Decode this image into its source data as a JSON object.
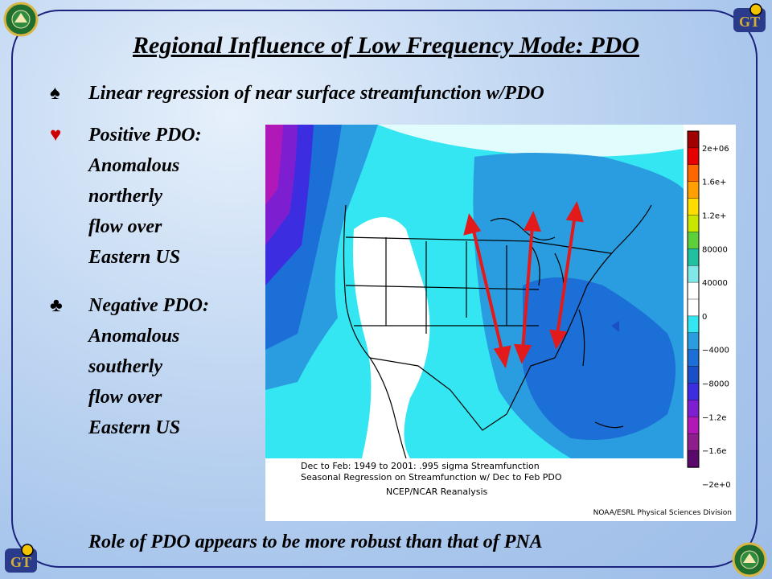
{
  "slide": {
    "title": "Regional Influence of Low Frequency Mode:  PDO",
    "bullets": [
      {
        "symbol": "♠",
        "symbol_color": "#000000",
        "lines": [
          "Linear regression of near surface streamfunction w/PDO"
        ]
      },
      {
        "symbol": "♥",
        "symbol_color": "#cc0000",
        "lines": [
          "Positive PDO:",
          "Anomalous",
          "northerly",
          "flow over",
          "Eastern US"
        ]
      },
      {
        "symbol": "♣",
        "symbol_color": "#000000",
        "lines": [
          "Negative PDO:",
          "Anomalous",
          "southerly",
          "flow over",
          "Eastern US"
        ]
      }
    ],
    "footer": "Role of PDO appears to be more robust than that of PNA",
    "logos": [
      "doe-seal-icon",
      "georgia-tech-logo-icon"
    ]
  },
  "figure": {
    "caption_lines": [
      "Dec to Feb: 1949 to 2001: .995 sigma Streamfunction",
      "Seasonal Regression on Streamfunction  w/ Dec to Feb PDO",
      "NCEP/NCAR Reanalysis"
    ],
    "credit": "NOAA/ESRL Physical Sciences Division",
    "colorbar_labels": [
      "2e+06",
      "1.6e+",
      "1.2e+",
      "80000",
      "40000",
      "0",
      "−4000",
      "−8000",
      "−1.2e",
      "−1.6e",
      "−2e+0"
    ],
    "colorbar_colors": [
      "#a00000",
      "#e60000",
      "#ff6600",
      "#ffa000",
      "#ffdd00",
      "#c8e600",
      "#5ccf3a",
      "#20c0a0",
      "#80e8e8",
      "#ffffff",
      "#ffffff",
      "#33e6f2",
      "#2a9de0",
      "#1c6fd6",
      "#1a4fc8",
      "#3c2ee0",
      "#7d1fd0",
      "#b019b8",
      "#8e1e8e",
      "#5a0a6a"
    ],
    "arrows": 3,
    "arrow_color": "#e31a1c"
  }
}
